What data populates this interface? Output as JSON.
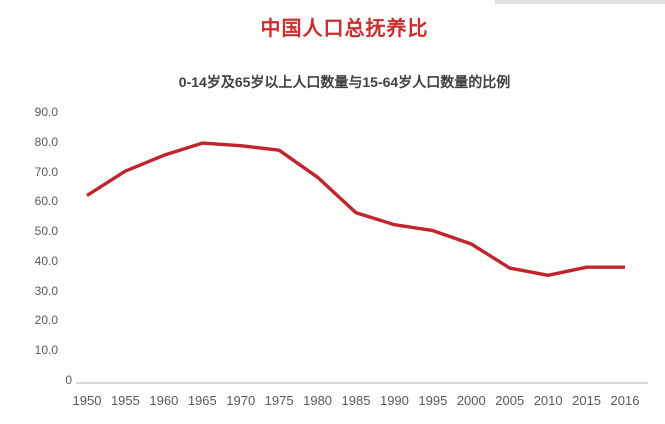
{
  "page": {
    "title": "中国人口总抚养比",
    "subtitle": "0-14岁及65岁以上人口数量与15-64岁人口数量的比例"
  },
  "colors": {
    "title_red": "#c92d2d",
    "line_red": "#c0242c",
    "axis_gray": "#d6d6d6",
    "tick_gray": "#595959"
  },
  "chart_data": {
    "type": "line",
    "title": "中国人口总抚养比",
    "subtitle": "0-14岁及65岁以上人口数量与15-64岁人口数量的比例",
    "categories": [
      "1950",
      "1955",
      "1960",
      "1965",
      "1970",
      "1975",
      "1980",
      "1985",
      "1990",
      "1995",
      "2000",
      "2005",
      "2010",
      "2015",
      "2016"
    ],
    "series": [
      {
        "name": "总抚养比",
        "values": [
          62.3,
          70.5,
          75.8,
          79.9,
          79.0,
          77.5,
          68.4,
          56.5,
          52.5,
          50.5,
          46.0,
          37.9,
          35.5,
          38.2,
          38.2
        ]
      }
    ],
    "ylim": [
      0,
      90
    ],
    "ytick_step": 10,
    "ytick_labels": [
      "90.0",
      "80.0",
      "70.0",
      "60.0",
      "50.0",
      "40.0",
      "30.0",
      "20.0",
      "10.0",
      "0"
    ],
    "grid": false,
    "legend": "none"
  }
}
